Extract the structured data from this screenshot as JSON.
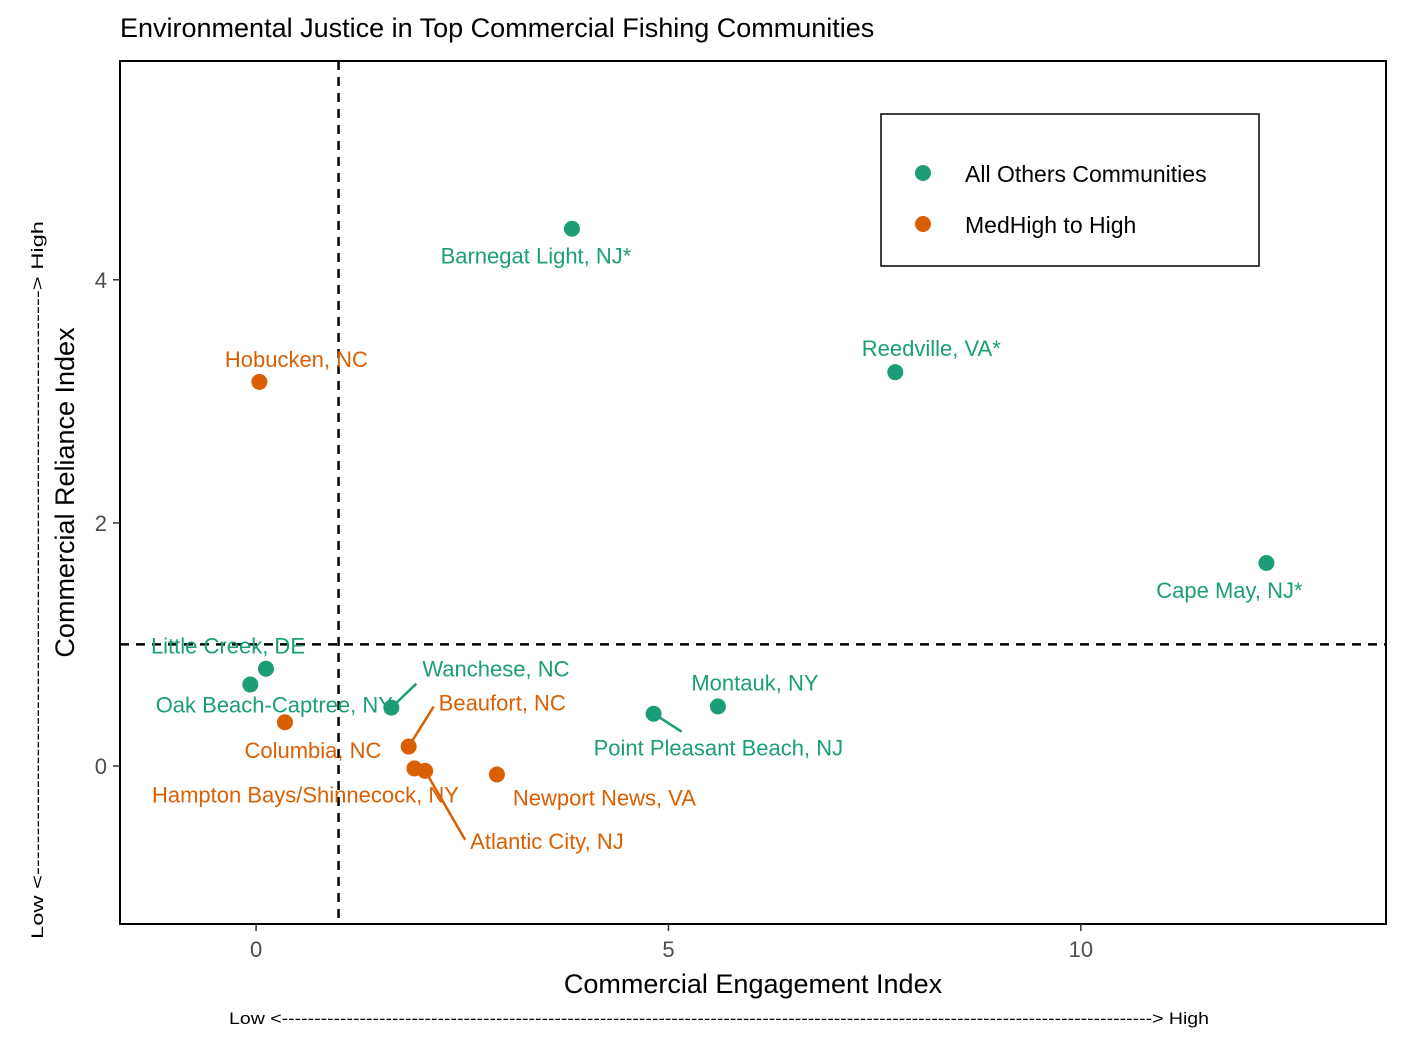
{
  "chart_data": {
    "type": "scatter",
    "title": "Environmental Justice in Top Commercial Fishing Communities",
    "xlabel": "Commercial Engagement Index",
    "ylabel": "Commercial Reliance Index",
    "x_arrow_note": "Low <--------------------------------------------------------------------------------------------------------------------------------------> High",
    "y_arrow_note": "Low <--------------------------------------------------------------------------> High",
    "xlim": [
      -1.65,
      13.7
    ],
    "ylim": [
      -1.3,
      5.8
    ],
    "x_ticks": [
      0,
      5,
      10
    ],
    "y_ticks": [
      0,
      2,
      4
    ],
    "grid": false,
    "reference_lines": {
      "x": 1,
      "y": 1,
      "style": "dashed"
    },
    "legend": {
      "position": "top-right",
      "entries": [
        {
          "label": "All Others Communities",
          "color": "#1b9e77"
        },
        {
          "label": "MedHigh to High",
          "color": "#d95f02"
        }
      ]
    },
    "series": [
      {
        "name": "All Others Communities",
        "color": "#1b9e77",
        "points": [
          {
            "label": "Barnegat Light, NJ*",
            "x": 3.83,
            "y": 4.42
          },
          {
            "label": "Reedville, VA*",
            "x": 7.75,
            "y": 3.24
          },
          {
            "label": "Cape May, NJ*",
            "x": 12.25,
            "y": 1.67
          },
          {
            "label": "Little Creek, DE",
            "x": 0.12,
            "y": 0.8
          },
          {
            "label": "Oak Beach-Captree, NY",
            "x": -0.07,
            "y": 0.67
          },
          {
            "label": "Wanchese, NC",
            "x": 1.64,
            "y": 0.48
          },
          {
            "label": "Montauk, NY",
            "x": 5.6,
            "y": 0.49
          },
          {
            "label": "Point Pleasant Beach, NJ",
            "x": 4.82,
            "y": 0.43
          }
        ]
      },
      {
        "name": "MedHigh to High",
        "color": "#d95f02",
        "points": [
          {
            "label": "Hobucken, NC",
            "x": 0.04,
            "y": 3.16
          },
          {
            "label": "Columbia, NC",
            "x": 0.35,
            "y": 0.36
          },
          {
            "label": "Beaufort, NC",
            "x": 1.85,
            "y": 0.16
          },
          {
            "label": "Hampton Bays/Shinnecock, NY",
            "x": 1.92,
            "y": -0.02
          },
          {
            "label": "Atlantic City, NJ",
            "x": 2.05,
            "y": -0.04
          },
          {
            "label": "Newport News, VA",
            "x": 2.92,
            "y": -0.07
          }
        ]
      }
    ]
  }
}
